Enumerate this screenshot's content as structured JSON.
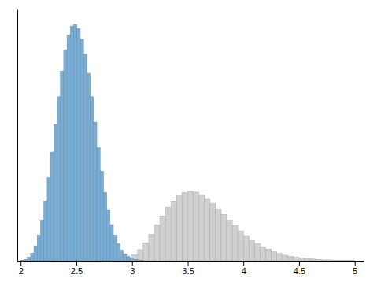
{
  "chart_data": {
    "type": "histogram",
    "series": [
      {
        "color": "#7aadd4",
        "bins": [
          2.0,
          2.02973,
          2.059459,
          2.089189,
          2.118919,
          2.148649,
          2.178378,
          2.208108,
          2.237838,
          2.267568,
          2.297297,
          2.327027,
          2.356757,
          2.386486,
          2.416216,
          2.445946,
          2.475676,
          2.505405,
          2.535135,
          2.564865,
          2.594595,
          2.624324,
          2.654054,
          2.683784,
          2.713514,
          2.743243,
          2.772973,
          2.802703,
          2.832432,
          2.862162,
          2.891892,
          2.921622,
          2.951351,
          2.981081,
          3.010811,
          3.040541,
          3.07027,
          3.1
        ],
        "values": [
          1,
          3,
          8,
          18,
          35,
          60,
          95,
          140,
          195,
          255,
          320,
          385,
          445,
          495,
          530,
          550,
          555,
          545,
          520,
          485,
          440,
          385,
          325,
          265,
          210,
          160,
          120,
          85,
          60,
          40,
          25,
          16,
          10,
          6,
          3,
          2,
          1
        ]
      },
      {
        "color": "#d0d0d0",
        "bins": [
          2.5,
          2.55,
          2.6,
          2.65,
          2.7,
          2.75,
          2.8,
          2.85,
          2.9,
          2.95,
          3.0,
          3.05,
          3.1,
          3.15,
          3.2,
          3.25,
          3.3,
          3.35,
          3.4,
          3.45,
          3.5,
          3.55,
          3.6,
          3.65,
          3.7,
          3.75,
          3.8,
          3.85,
          3.9,
          3.95,
          4.0,
          4.05,
          4.1,
          4.15,
          4.2,
          4.25,
          4.3,
          4.35,
          4.4,
          4.45,
          4.5,
          4.55,
          4.6,
          4.65,
          4.7,
          4.75,
          4.8,
          4.85,
          4.9,
          4.95,
          5.0
        ],
        "values": [
          0,
          0,
          0,
          0,
          0,
          0,
          0,
          0,
          2,
          6,
          14,
          26,
          42,
          62,
          84,
          105,
          125,
          140,
          152,
          160,
          163,
          161,
          155,
          146,
          134,
          121,
          108,
          95,
          82,
          70,
          59,
          49,
          40,
          33,
          27,
          21,
          17,
          13,
          10,
          8,
          6,
          5,
          4,
          3,
          2,
          2,
          1,
          1,
          1,
          1
        ]
      }
    ],
    "xlim": [
      1.97,
      5.08
    ],
    "ylim": [
      0,
      590
    ],
    "xticks": [
      2,
      2.5,
      3,
      3.5,
      4,
      4.5,
      5
    ],
    "tick_labels": "x",
    "grid": false
  }
}
